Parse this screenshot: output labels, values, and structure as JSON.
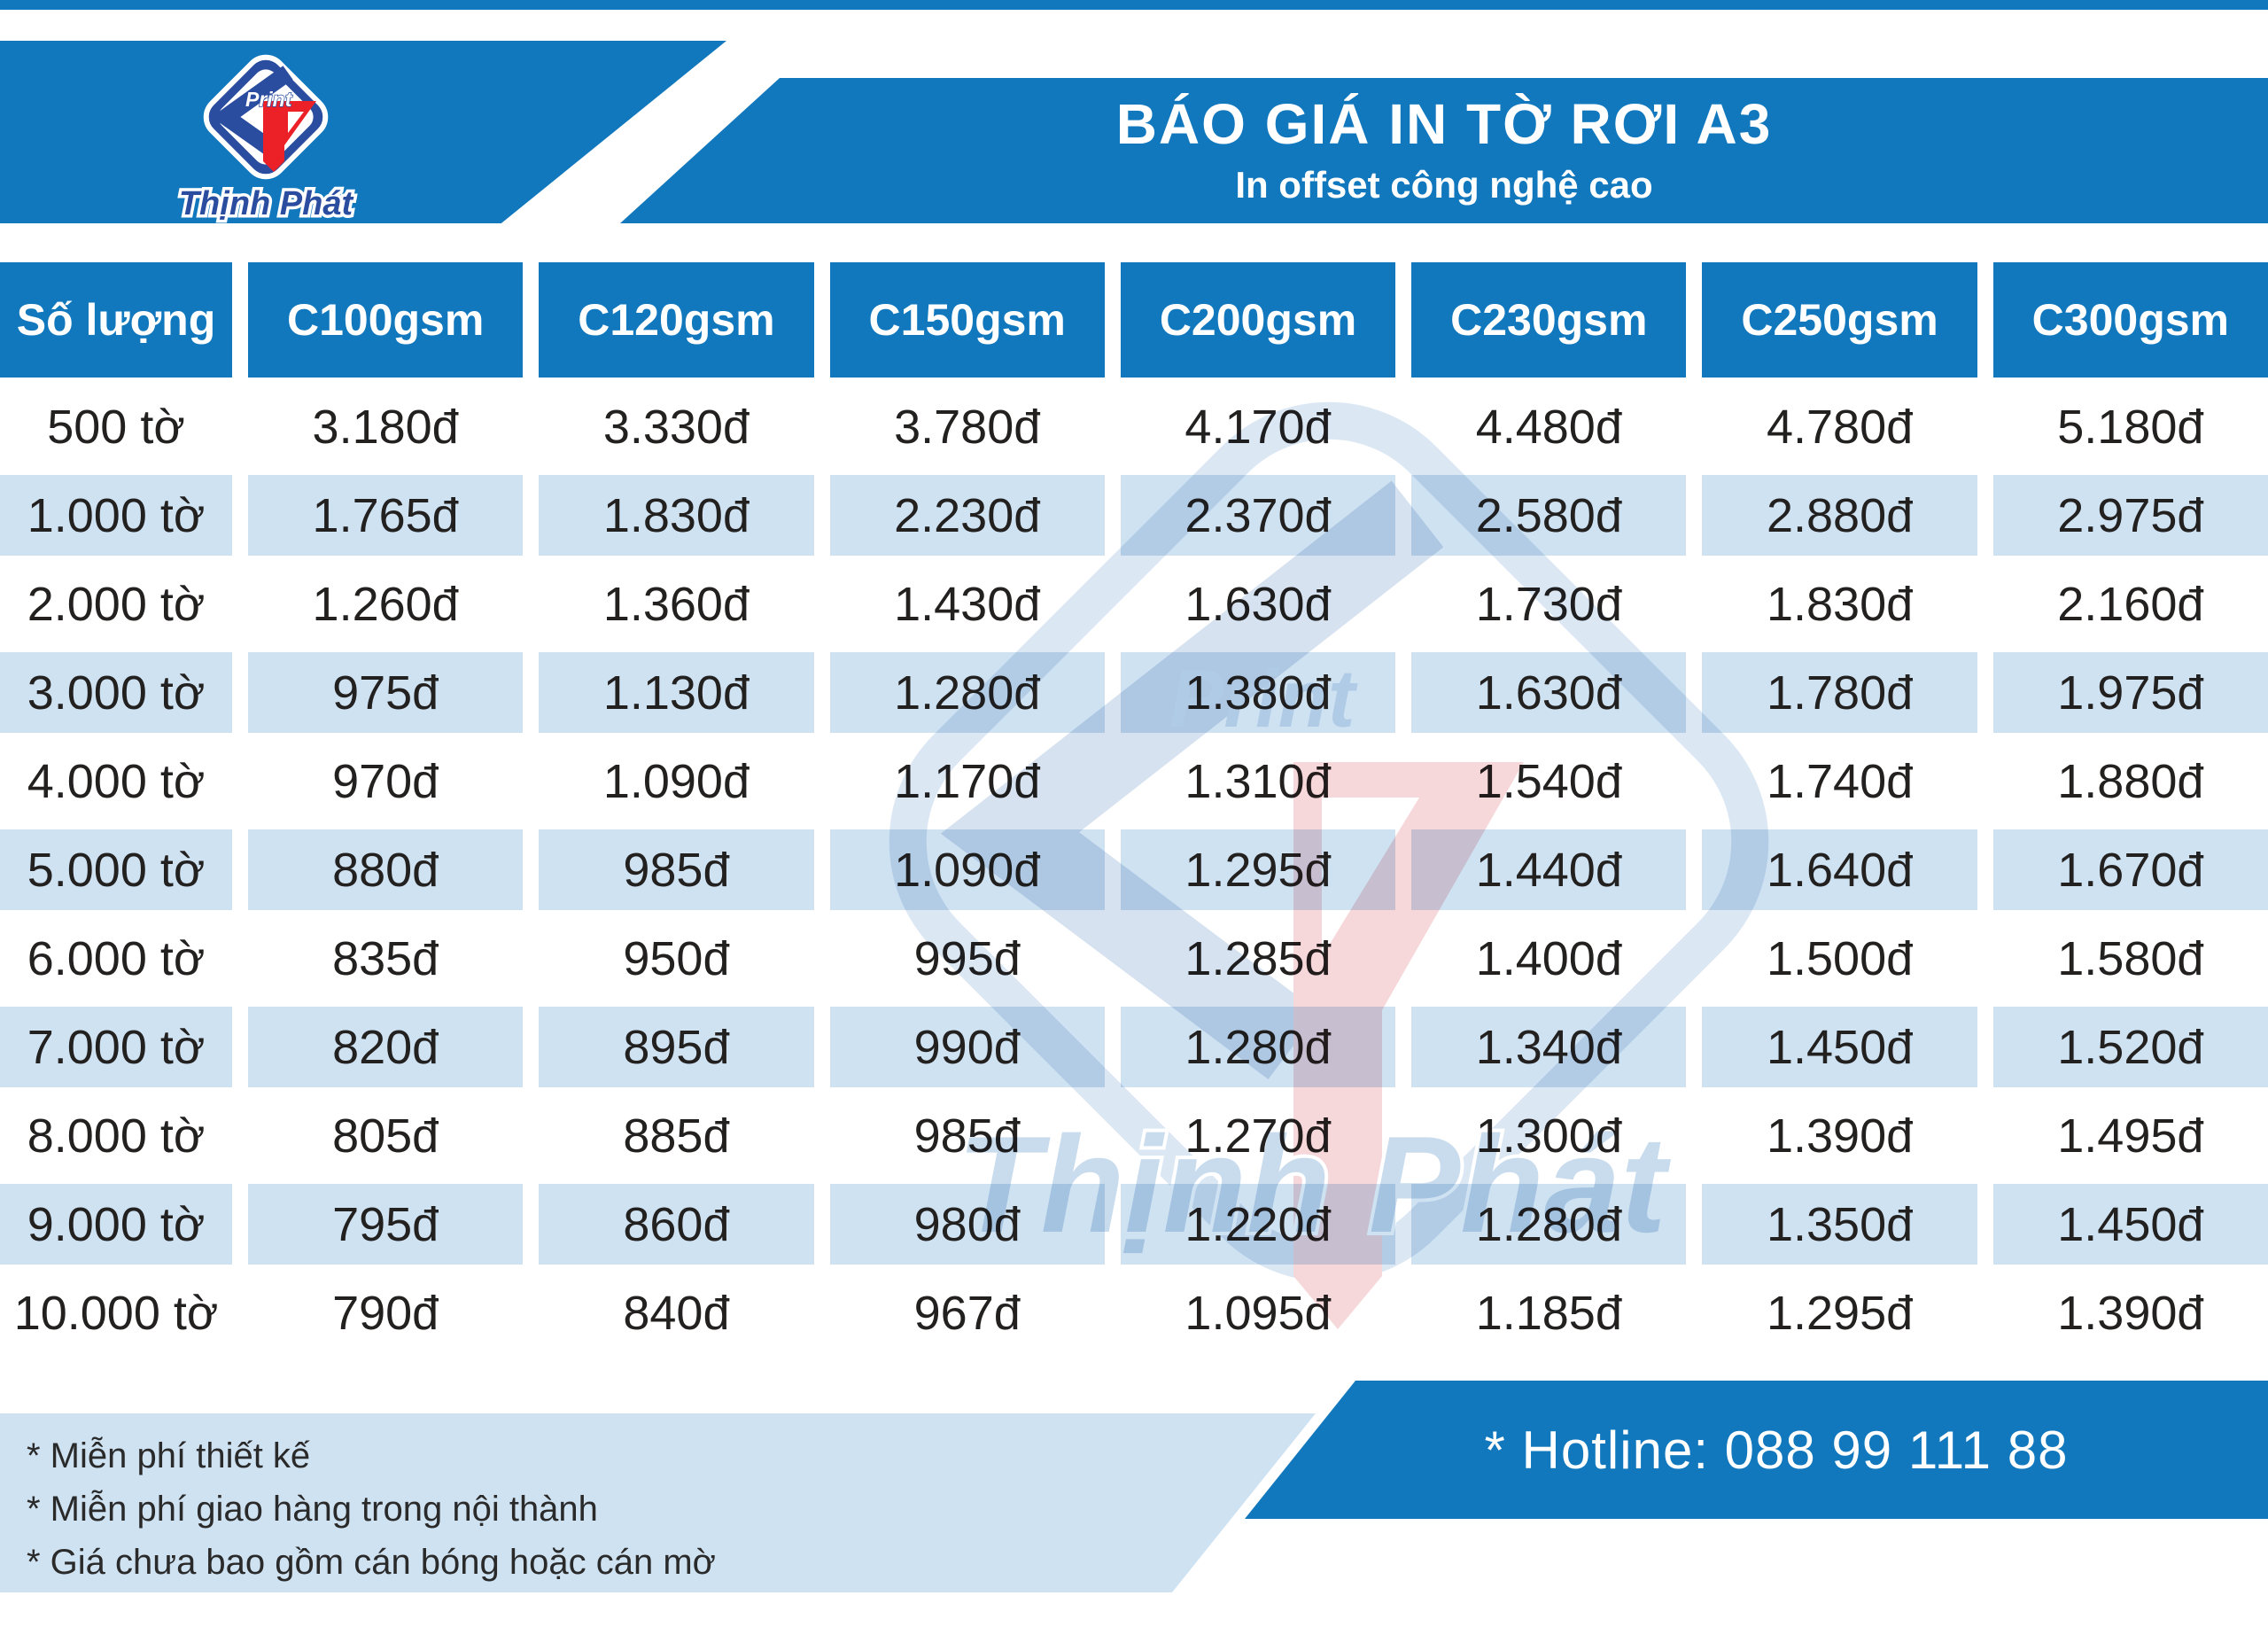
{
  "header": {
    "title": "BÁO GIÁ IN TỜ RƠI A3",
    "subtitle": "In offset công nghệ cao",
    "logo": {
      "tag": "Print",
      "brand": "Thịnh Phát"
    }
  },
  "table": {
    "columns": [
      "Số lượng",
      "C100gsm",
      "C120gsm",
      "C150gsm",
      "C200gsm",
      "C230gsm",
      "C250gsm",
      "C300gsm"
    ],
    "rows": [
      [
        "500 tờ",
        "3.180đ",
        "3.330đ",
        "3.780đ",
        "4.170đ",
        "4.480đ",
        "4.780đ",
        "5.180đ"
      ],
      [
        "1.000 tờ",
        "1.765đ",
        "1.830đ",
        "2.230đ",
        "2.370đ",
        "2.580đ",
        "2.880đ",
        "2.975đ"
      ],
      [
        "2.000 tờ",
        "1.260đ",
        "1.360đ",
        "1.430đ",
        "1.630đ",
        "1.730đ",
        "1.830đ",
        "2.160đ"
      ],
      [
        "3.000 tờ",
        "975đ",
        "1.130đ",
        "1.280đ",
        "1.380đ",
        "1.630đ",
        "1.780đ",
        "1.975đ"
      ],
      [
        "4.000 tờ",
        "970đ",
        "1.090đ",
        "1.170đ",
        "1.310đ",
        "1.540đ",
        "1.740đ",
        "1.880đ"
      ],
      [
        "5.000 tờ",
        "880đ",
        "985đ",
        "1.090đ",
        "1.295đ",
        "1.440đ",
        "1.640đ",
        "1.670đ"
      ],
      [
        "6.000 tờ",
        "835đ",
        "950đ",
        "995đ",
        "1.285đ",
        "1.400đ",
        "1.500đ",
        "1.580đ"
      ],
      [
        "7.000 tờ",
        "820đ",
        "895đ",
        "990đ",
        "1.280đ",
        "1.340đ",
        "1.450đ",
        "1.520đ"
      ],
      [
        "8.000 tờ",
        "805đ",
        "885đ",
        "985đ",
        "1.270đ",
        "1.300đ",
        "1.390đ",
        "1.495đ"
      ],
      [
        "9.000 tờ",
        "795đ",
        "860đ",
        "980đ",
        "1.220đ",
        "1.280đ",
        "1.350đ",
        "1.450đ"
      ],
      [
        "10.000 tờ",
        "790đ",
        "840đ",
        "967đ",
        "1.095đ",
        "1.185đ",
        "1.295đ",
        "1.390đ"
      ]
    ]
  },
  "footer": {
    "notes": [
      "* Miễn phí thiết kế",
      "* Miễn phí giao hàng trong nội thành",
      "* Giá chưa bao gồm cán bóng hoặc cán mờ"
    ],
    "hotline": "* Hotline: 088 99 111 88"
  },
  "colors": {
    "brand-blue": "#1278be",
    "logo-navy": "#2a4da0",
    "logo-red": "#ec2127",
    "row-alt": "#cfe2f2",
    "text-dark": "#232020"
  }
}
